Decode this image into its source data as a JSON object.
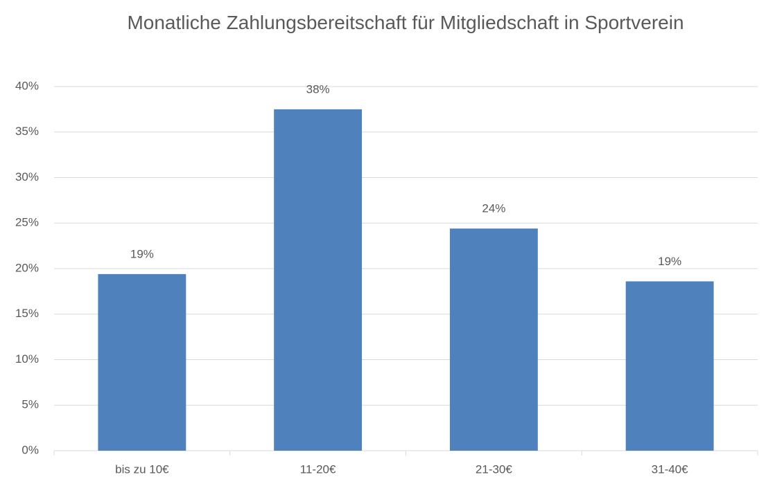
{
  "chart_data": {
    "type": "bar",
    "title": "Monatliche Zahlungsbereitschaft für Mitgliedschaft in Sportverein",
    "categories": [
      "bis zu 10€",
      "11-20€",
      "21-30€",
      "31-40€"
    ],
    "values": [
      19.4,
      37.5,
      24.4,
      18.6
    ],
    "value_labels": [
      "19%",
      "38%",
      "24%",
      "19%"
    ],
    "color": "#4f81bd",
    "ylim": [
      0,
      40
    ],
    "yticks": [
      {
        "value": 0,
        "label": "0%"
      },
      {
        "value": 5,
        "label": "5%"
      },
      {
        "value": 10,
        "label": "10%"
      },
      {
        "value": 15,
        "label": "15%"
      },
      {
        "value": 20,
        "label": "20%"
      },
      {
        "value": 25,
        "label": "25%"
      },
      {
        "value": 30,
        "label": "30%"
      },
      {
        "value": 35,
        "label": "35%"
      },
      {
        "value": 40,
        "label": "40%"
      }
    ],
    "grid": true
  }
}
